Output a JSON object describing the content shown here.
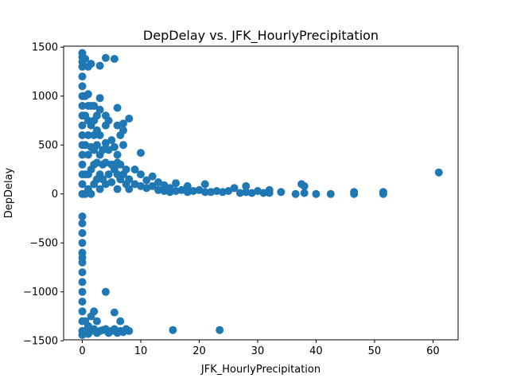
{
  "chart_data": {
    "type": "scatter",
    "title": "DepDelay vs. JFK_HourlyPrecipitation",
    "xlabel": "JFK_HourlyPrecipitation",
    "ylabel": "DepDelay",
    "xlim": [
      -3.2,
      64.3
    ],
    "ylim": [
      -1490,
      1510
    ],
    "xticks": [
      0,
      10,
      20,
      30,
      40,
      50,
      60
    ],
    "yticks": [
      -1500,
      -1000,
      -500,
      0,
      500,
      1000,
      1500
    ],
    "grid": false,
    "marker_color": "#1f77b4",
    "points": [
      {
        "x": 0,
        "y": 1440
      },
      {
        "x": 0,
        "y": 1400
      },
      {
        "x": 0,
        "y": 1350
      },
      {
        "x": 0,
        "y": 1300
      },
      {
        "x": 0,
        "y": 1200
      },
      {
        "x": 0,
        "y": 1100
      },
      {
        "x": 0,
        "y": 1000
      },
      {
        "x": 0,
        "y": 900
      },
      {
        "x": 0,
        "y": 800
      },
      {
        "x": 0,
        "y": 700
      },
      {
        "x": 0,
        "y": 600
      },
      {
        "x": 0,
        "y": 500
      },
      {
        "x": 0,
        "y": 400
      },
      {
        "x": 0,
        "y": 300
      },
      {
        "x": 0,
        "y": 200
      },
      {
        "x": 0,
        "y": 100
      },
      {
        "x": 0,
        "y": 0
      },
      {
        "x": 0.5,
        "y": 1380
      },
      {
        "x": 0.5,
        "y": 1000
      },
      {
        "x": 0.5,
        "y": 800
      },
      {
        "x": 0.5,
        "y": 500
      },
      {
        "x": 0.5,
        "y": 200
      },
      {
        "x": 0.5,
        "y": 0
      },
      {
        "x": 1,
        "y": 1300
      },
      {
        "x": 1,
        "y": 1020
      },
      {
        "x": 1,
        "y": 900
      },
      {
        "x": 1,
        "y": 750
      },
      {
        "x": 1,
        "y": 600
      },
      {
        "x": 1,
        "y": 400
      },
      {
        "x": 1,
        "y": 200
      },
      {
        "x": 1,
        "y": 50
      },
      {
        "x": 1.5,
        "y": 1330
      },
      {
        "x": 1.5,
        "y": 900
      },
      {
        "x": 1.5,
        "y": 700
      },
      {
        "x": 1.5,
        "y": 480
      },
      {
        "x": 1.5,
        "y": 250
      },
      {
        "x": 1.5,
        "y": 0
      },
      {
        "x": 2,
        "y": 900
      },
      {
        "x": 2,
        "y": 750
      },
      {
        "x": 2,
        "y": 600
      },
      {
        "x": 2,
        "y": 450
      },
      {
        "x": 2,
        "y": 300
      },
      {
        "x": 2,
        "y": 100
      },
      {
        "x": 2.5,
        "y": 800
      },
      {
        "x": 2.5,
        "y": 650
      },
      {
        "x": 2.5,
        "y": 500
      },
      {
        "x": 2.5,
        "y": 320
      },
      {
        "x": 2.5,
        "y": 150
      },
      {
        "x": 3,
        "y": 1310
      },
      {
        "x": 3,
        "y": 980
      },
      {
        "x": 3,
        "y": 860
      },
      {
        "x": 3,
        "y": 600
      },
      {
        "x": 3,
        "y": 400
      },
      {
        "x": 3,
        "y": 200
      },
      {
        "x": 3,
        "y": 50
      },
      {
        "x": 3.5,
        "y": 450
      },
      {
        "x": 3.5,
        "y": 300
      },
      {
        "x": 3.5,
        "y": 150
      },
      {
        "x": 4,
        "y": 1390
      },
      {
        "x": 4,
        "y": 800
      },
      {
        "x": 4,
        "y": 700
      },
      {
        "x": 4,
        "y": 520
      },
      {
        "x": 4,
        "y": 320
      },
      {
        "x": 4,
        "y": 100
      },
      {
        "x": 4.5,
        "y": 750
      },
      {
        "x": 4.5,
        "y": 450
      },
      {
        "x": 4.5,
        "y": 200
      },
      {
        "x": 5,
        "y": 550
      },
      {
        "x": 5,
        "y": 300
      },
      {
        "x": 5,
        "y": 120
      },
      {
        "x": 5.5,
        "y": 1380
      },
      {
        "x": 5.5,
        "y": 480
      },
      {
        "x": 5.5,
        "y": 250
      },
      {
        "x": 6,
        "y": 880
      },
      {
        "x": 6,
        "y": 700
      },
      {
        "x": 6,
        "y": 400
      },
      {
        "x": 6,
        "y": 320
      },
      {
        "x": 6,
        "y": 200
      },
      {
        "x": 6,
        "y": 50
      },
      {
        "x": 6.5,
        "y": 600
      },
      {
        "x": 6.5,
        "y": 300
      },
      {
        "x": 6.5,
        "y": 150
      },
      {
        "x": 7,
        "y": 720
      },
      {
        "x": 7,
        "y": 650
      },
      {
        "x": 7,
        "y": 500
      },
      {
        "x": 7,
        "y": 200
      },
      {
        "x": 7.5,
        "y": 250
      },
      {
        "x": 7.5,
        "y": 100
      },
      {
        "x": 8,
        "y": 770
      },
      {
        "x": 8,
        "y": 150
      },
      {
        "x": 8,
        "y": 50
      },
      {
        "x": 9,
        "y": 250
      },
      {
        "x": 9,
        "y": 100
      },
      {
        "x": 10,
        "y": 420
      },
      {
        "x": 10,
        "y": 200
      },
      {
        "x": 10,
        "y": 80
      },
      {
        "x": 11,
        "y": 140
      },
      {
        "x": 11,
        "y": 60
      },
      {
        "x": 12,
        "y": 180
      },
      {
        "x": 12,
        "y": 80
      },
      {
        "x": 13,
        "y": 120
      },
      {
        "x": 13,
        "y": 40
      },
      {
        "x": 14,
        "y": 90
      },
      {
        "x": 14,
        "y": 30
      },
      {
        "x": 15,
        "y": 60
      },
      {
        "x": 15,
        "y": 20
      },
      {
        "x": 16,
        "y": 110
      },
      {
        "x": 16,
        "y": 30
      },
      {
        "x": 17,
        "y": 40
      },
      {
        "x": 18,
        "y": 80
      },
      {
        "x": 18,
        "y": 20
      },
      {
        "x": 19,
        "y": 30
      },
      {
        "x": 20,
        "y": 40
      },
      {
        "x": 21,
        "y": 100
      },
      {
        "x": 21,
        "y": 20
      },
      {
        "x": 22,
        "y": 20
      },
      {
        "x": 23,
        "y": 30
      },
      {
        "x": 24,
        "y": 20
      },
      {
        "x": 25,
        "y": 30
      },
      {
        "x": 26,
        "y": 60
      },
      {
        "x": 27,
        "y": 10
      },
      {
        "x": 28,
        "y": 80
      },
      {
        "x": 28,
        "y": 20
      },
      {
        "x": 29,
        "y": 10
      },
      {
        "x": 30,
        "y": 30
      },
      {
        "x": 31,
        "y": 10
      },
      {
        "x": 32,
        "y": 40
      },
      {
        "x": 32,
        "y": 10
      },
      {
        "x": 34,
        "y": 20
      },
      {
        "x": 36.5,
        "y": 0
      },
      {
        "x": 37.5,
        "y": 100
      },
      {
        "x": 38,
        "y": 80
      },
      {
        "x": 38,
        "y": 10
      },
      {
        "x": 40,
        "y": 0
      },
      {
        "x": 42.5,
        "y": 0
      },
      {
        "x": 46.5,
        "y": 20
      },
      {
        "x": 46.5,
        "y": 0
      },
      {
        "x": 51.5,
        "y": 20
      },
      {
        "x": 51.5,
        "y": 0
      },
      {
        "x": 61,
        "y": 220
      },
      {
        "x": 0,
        "y": -230
      },
      {
        "x": 0,
        "y": -300
      },
      {
        "x": 0,
        "y": -400
      },
      {
        "x": 0,
        "y": -500
      },
      {
        "x": 0,
        "y": -600
      },
      {
        "x": 0,
        "y": -650
      },
      {
        "x": 0,
        "y": -700
      },
      {
        "x": 0,
        "y": -800
      },
      {
        "x": 0,
        "y": -900
      },
      {
        "x": 0,
        "y": -1000
      },
      {
        "x": 0,
        "y": -1100
      },
      {
        "x": 0,
        "y": -1200
      },
      {
        "x": 0,
        "y": -1300
      },
      {
        "x": 0,
        "y": -1400
      },
      {
        "x": 0,
        "y": -1440
      },
      {
        "x": 0.5,
        "y": -1300
      },
      {
        "x": 0.5,
        "y": -1400
      },
      {
        "x": 1,
        "y": -1350
      },
      {
        "x": 1,
        "y": -1430
      },
      {
        "x": 1.5,
        "y": -1250
      },
      {
        "x": 1.5,
        "y": -1400
      },
      {
        "x": 2,
        "y": -1200
      },
      {
        "x": 2,
        "y": -1380
      },
      {
        "x": 2.5,
        "y": -1300
      },
      {
        "x": 2.5,
        "y": -1420
      },
      {
        "x": 3,
        "y": -1400
      },
      {
        "x": 3.5,
        "y": -1390
      },
      {
        "x": 4,
        "y": -1000
      },
      {
        "x": 4,
        "y": -1380
      },
      {
        "x": 4.5,
        "y": -1420
      },
      {
        "x": 5,
        "y": -1400
      },
      {
        "x": 5.5,
        "y": -1210
      },
      {
        "x": 5.5,
        "y": -1380
      },
      {
        "x": 6,
        "y": -1420
      },
      {
        "x": 6.5,
        "y": -1300
      },
      {
        "x": 6.5,
        "y": -1400
      },
      {
        "x": 7,
        "y": -1410
      },
      {
        "x": 7.5,
        "y": -1380
      },
      {
        "x": 8,
        "y": -1400
      },
      {
        "x": 15.5,
        "y": -1390
      },
      {
        "x": 23.5,
        "y": -1390
      }
    ]
  }
}
